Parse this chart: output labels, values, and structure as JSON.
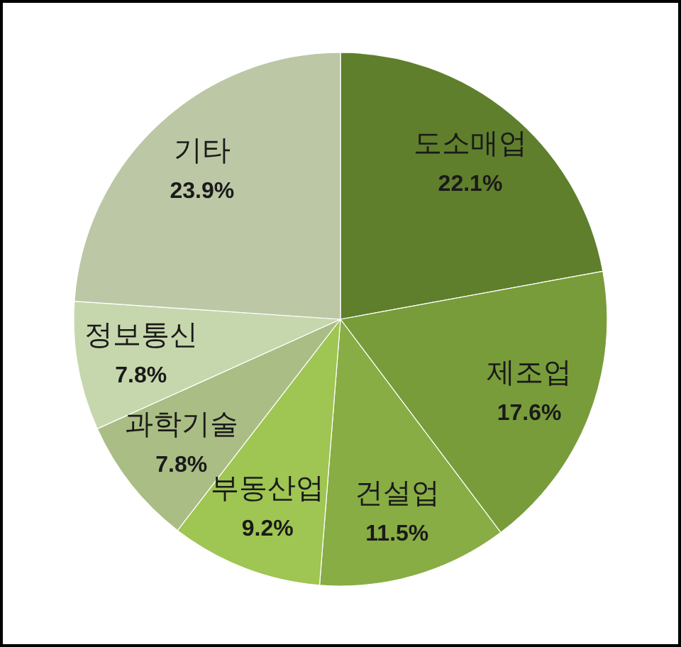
{
  "chart_data": {
    "type": "pie",
    "categories": [
      "도소매업",
      "제조업",
      "건설업",
      "부동산업",
      "과학기술",
      "정보통신",
      "기타"
    ],
    "values": [
      22.1,
      17.6,
      11.5,
      9.2,
      7.8,
      7.8,
      23.9
    ],
    "value_labels": [
      "22.1%",
      "17.6%",
      "11.5%",
      "9.2%",
      "7.8%",
      "7.8%",
      "23.9%"
    ],
    "colors": [
      "#5f7f2c",
      "#789c3a",
      "#88ad44",
      "#9fc552",
      "#aabd84",
      "#c7d7ad",
      "#bcc7a5"
    ]
  }
}
